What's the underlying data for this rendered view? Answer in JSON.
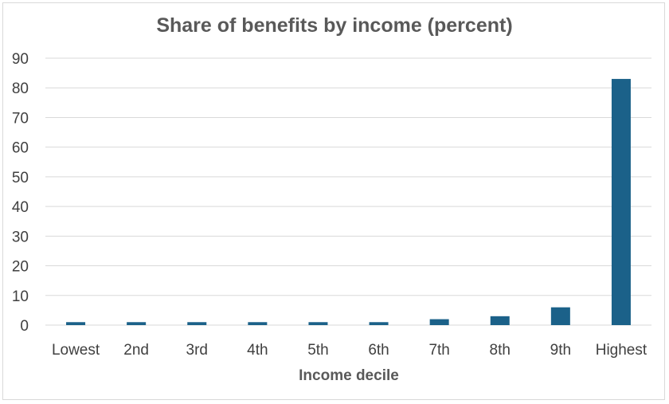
{
  "chart_data": {
    "type": "bar",
    "title": "Share of benefits by income (percent)",
    "xlabel": "Income decile",
    "ylabel": "",
    "categories": [
      "Lowest",
      "2nd",
      "3rd",
      "4th",
      "5th",
      "6th",
      "7th",
      "8th",
      "9th",
      "Highest"
    ],
    "values": [
      1,
      1,
      1,
      1,
      1,
      1,
      2,
      3,
      6,
      83
    ],
    "ylim": [
      0,
      90
    ],
    "yticks": [
      "0",
      "10",
      "20",
      "30",
      "40",
      "50",
      "60",
      "70",
      "80",
      "90"
    ],
    "grid": true,
    "legend": "none",
    "bar_color": "#1b6189",
    "grid_color": "#d9d9d9"
  }
}
